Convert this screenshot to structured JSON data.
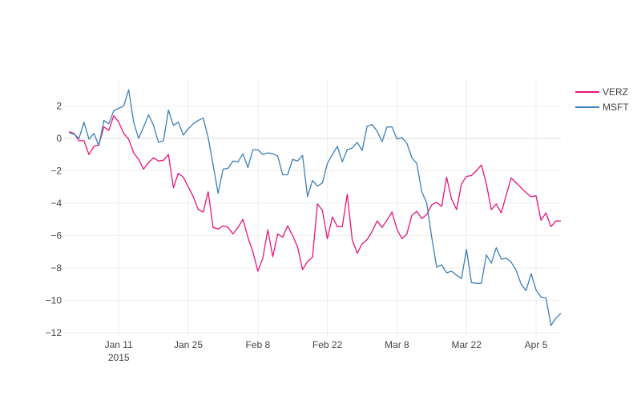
{
  "chart_data": {
    "type": "line",
    "title": "",
    "xlabel": "",
    "ylabel": "",
    "x_tick_labels": [
      {
        "date": "2015-01-11",
        "label": "Jan 11",
        "sublabel": "2015"
      },
      {
        "date": "2015-01-25",
        "label": "Jan 25",
        "sublabel": ""
      },
      {
        "date": "2015-02-08",
        "label": "Feb 8",
        "sublabel": ""
      },
      {
        "date": "2015-02-22",
        "label": "Feb 22",
        "sublabel": ""
      },
      {
        "date": "2015-03-08",
        "label": "Mar 8",
        "sublabel": ""
      },
      {
        "date": "2015-03-22",
        "label": "Mar 22",
        "sublabel": ""
      },
      {
        "date": "2015-04-05",
        "label": "Apr 5",
        "sublabel": ""
      }
    ],
    "y_ticks": [
      2,
      0,
      -2,
      -4,
      -6,
      -8,
      -10,
      -12
    ],
    "y_tick_labels": [
      "2",
      "0",
      "−2",
      "−4",
      "−6",
      "−8",
      "−10",
      "−12"
    ],
    "xlim": [
      "2014-12-31",
      "2015-04-10"
    ],
    "ylim": [
      -12.2,
      3.6
    ],
    "grid": true,
    "legend_position": "top-right",
    "series": [
      {
        "name": "VERZ",
        "color": "#e7157b",
        "x": [
          "2015-01-01",
          "2015-01-02",
          "2015-01-03",
          "2015-01-04",
          "2015-01-05",
          "2015-01-06",
          "2015-01-07",
          "2015-01-08",
          "2015-01-09",
          "2015-01-10",
          "2015-01-11",
          "2015-01-12",
          "2015-01-13",
          "2015-01-14",
          "2015-01-15",
          "2015-01-16",
          "2015-01-17",
          "2015-01-18",
          "2015-01-19",
          "2015-01-20",
          "2015-01-21",
          "2015-01-22",
          "2015-01-23",
          "2015-01-24",
          "2015-01-25",
          "2015-01-26",
          "2015-01-27",
          "2015-01-28",
          "2015-01-29",
          "2015-01-30",
          "2015-01-31",
          "2015-02-01",
          "2015-02-02",
          "2015-02-03",
          "2015-02-04",
          "2015-02-05",
          "2015-02-06",
          "2015-02-07",
          "2015-02-08",
          "2015-02-09",
          "2015-02-10",
          "2015-02-11",
          "2015-02-12",
          "2015-02-13",
          "2015-02-14",
          "2015-02-15",
          "2015-02-16",
          "2015-02-17",
          "2015-02-18",
          "2015-02-19",
          "2015-02-20",
          "2015-02-21",
          "2015-02-22",
          "2015-02-23",
          "2015-02-24",
          "2015-02-25",
          "2015-02-26",
          "2015-02-27",
          "2015-02-28",
          "2015-03-01",
          "2015-03-02",
          "2015-03-03",
          "2015-03-04",
          "2015-03-05",
          "2015-03-06",
          "2015-03-07",
          "2015-03-08",
          "2015-03-09",
          "2015-03-10",
          "2015-03-11",
          "2015-03-12",
          "2015-03-13",
          "2015-03-14",
          "2015-03-15",
          "2015-03-16",
          "2015-03-17",
          "2015-03-18",
          "2015-03-19",
          "2015-03-20",
          "2015-03-21",
          "2015-03-22",
          "2015-03-23",
          "2015-03-24",
          "2015-03-25",
          "2015-03-26",
          "2015-03-27",
          "2015-03-28",
          "2015-03-29",
          "2015-03-30",
          "2015-03-31",
          "2015-04-01",
          "2015-04-02",
          "2015-04-03",
          "2015-04-04",
          "2015-04-05",
          "2015-04-06",
          "2015-04-07",
          "2015-04-08",
          "2015-04-09",
          "2015-04-10"
        ],
        "y": [
          0.4,
          0.3,
          -0.15,
          -0.15,
          -1.0,
          -0.5,
          -0.4,
          0.7,
          0.5,
          1.4,
          1.0,
          0.3,
          -0.05,
          -0.9,
          -1.3,
          -1.9,
          -1.5,
          -1.2,
          -1.4,
          -1.35,
          -1.0,
          -3.05,
          -2.15,
          -2.4,
          -3.0,
          -3.6,
          -4.4,
          -4.55,
          -3.3,
          -5.5,
          -5.6,
          -5.4,
          -5.5,
          -5.9,
          -5.5,
          -5.0,
          -6.1,
          -7.0,
          -8.2,
          -7.4,
          -5.65,
          -7.3,
          -5.9,
          -6.1,
          -5.4,
          -6.0,
          -6.7,
          -8.1,
          -7.6,
          -7.35,
          -4.05,
          -4.45,
          -6.2,
          -4.85,
          -5.45,
          -5.45,
          -3.45,
          -6.25,
          -7.1,
          -6.5,
          -6.25,
          -5.75,
          -5.1,
          -5.5,
          -5.05,
          -4.55,
          -5.6,
          -6.2,
          -5.9,
          -4.75,
          -4.5,
          -4.95,
          -4.7,
          -4.1,
          -3.95,
          -4.2,
          -2.4,
          -3.75,
          -4.4,
          -2.8,
          -2.35,
          -2.3,
          -2.0,
          -1.65,
          -2.8,
          -4.4,
          -4.05,
          -4.6,
          -3.5,
          -2.45,
          -2.75,
          -3.05,
          -3.35,
          -3.6,
          -3.55,
          -5.05,
          -4.6,
          -5.45,
          -5.1,
          -5.1
        ]
      },
      {
        "name": "MSFT",
        "color": "#3d7fb8",
        "x": [
          "2015-01-01",
          "2015-01-02",
          "2015-01-03",
          "2015-01-04",
          "2015-01-05",
          "2015-01-06",
          "2015-01-07",
          "2015-01-08",
          "2015-01-09",
          "2015-01-10",
          "2015-01-11",
          "2015-01-12",
          "2015-01-13",
          "2015-01-14",
          "2015-01-15",
          "2015-01-16",
          "2015-01-17",
          "2015-01-18",
          "2015-01-19",
          "2015-01-20",
          "2015-01-21",
          "2015-01-22",
          "2015-01-23",
          "2015-01-24",
          "2015-01-25",
          "2015-01-26",
          "2015-01-27",
          "2015-01-28",
          "2015-01-29",
          "2015-01-30",
          "2015-01-31",
          "2015-02-01",
          "2015-02-02",
          "2015-02-03",
          "2015-02-04",
          "2015-02-05",
          "2015-02-06",
          "2015-02-07",
          "2015-02-08",
          "2015-02-09",
          "2015-02-10",
          "2015-02-11",
          "2015-02-12",
          "2015-02-13",
          "2015-02-14",
          "2015-02-15",
          "2015-02-16",
          "2015-02-17",
          "2015-02-18",
          "2015-02-19",
          "2015-02-20",
          "2015-02-21",
          "2015-02-22",
          "2015-02-23",
          "2015-02-24",
          "2015-02-25",
          "2015-02-26",
          "2015-02-27",
          "2015-02-28",
          "2015-03-01",
          "2015-03-02",
          "2015-03-03",
          "2015-03-04",
          "2015-03-05",
          "2015-03-06",
          "2015-03-07",
          "2015-03-08",
          "2015-03-09",
          "2015-03-10",
          "2015-03-11",
          "2015-03-12",
          "2015-03-13",
          "2015-03-14",
          "2015-03-15",
          "2015-03-16",
          "2015-03-17",
          "2015-03-18",
          "2015-03-19",
          "2015-03-20",
          "2015-03-21",
          "2015-03-22",
          "2015-03-23",
          "2015-03-24",
          "2015-03-25",
          "2015-03-26",
          "2015-03-27",
          "2015-03-28",
          "2015-03-29",
          "2015-03-30",
          "2015-03-31",
          "2015-04-01",
          "2015-04-02",
          "2015-04-03",
          "2015-04-04",
          "2015-04-05",
          "2015-04-06",
          "2015-04-07",
          "2015-04-08",
          "2015-04-09",
          "2015-04-10"
        ],
        "y": [
          0.35,
          0.25,
          0.0,
          1.0,
          -0.05,
          0.3,
          -0.45,
          1.1,
          0.9,
          1.7,
          1.85,
          2.0,
          3.0,
          1.0,
          0.0,
          0.7,
          1.45,
          0.8,
          -0.25,
          -0.15,
          1.75,
          0.8,
          1.0,
          0.2,
          0.6,
          0.9,
          1.1,
          1.25,
          0.05,
          -1.65,
          -3.4,
          -1.9,
          -1.85,
          -1.4,
          -1.45,
          -0.95,
          -1.8,
          -0.7,
          -0.7,
          -1.0,
          -0.9,
          -0.95,
          -1.1,
          -2.25,
          -2.25,
          -1.3,
          -1.4,
          -1.05,
          -3.6,
          -2.6,
          -2.95,
          -2.75,
          -1.55,
          -1.0,
          -0.5,
          -1.45,
          -0.7,
          -0.6,
          -0.25,
          -0.75,
          0.75,
          0.85,
          0.45,
          -0.2,
          0.7,
          0.7,
          -0.05,
          0.05,
          -0.3,
          -1.2,
          -1.55,
          -3.3,
          -4.0,
          -6.1,
          -7.95,
          -7.8,
          -8.3,
          -8.2,
          -8.45,
          -8.65,
          -6.85,
          -8.9,
          -8.95,
          -8.95,
          -7.2,
          -7.7,
          -6.75,
          -7.45,
          -7.4,
          -7.65,
          -8.15,
          -9.0,
          -9.4,
          -8.35,
          -9.35,
          -9.8,
          -9.85,
          -11.55,
          -11.1,
          -10.8
        ]
      }
    ]
  }
}
